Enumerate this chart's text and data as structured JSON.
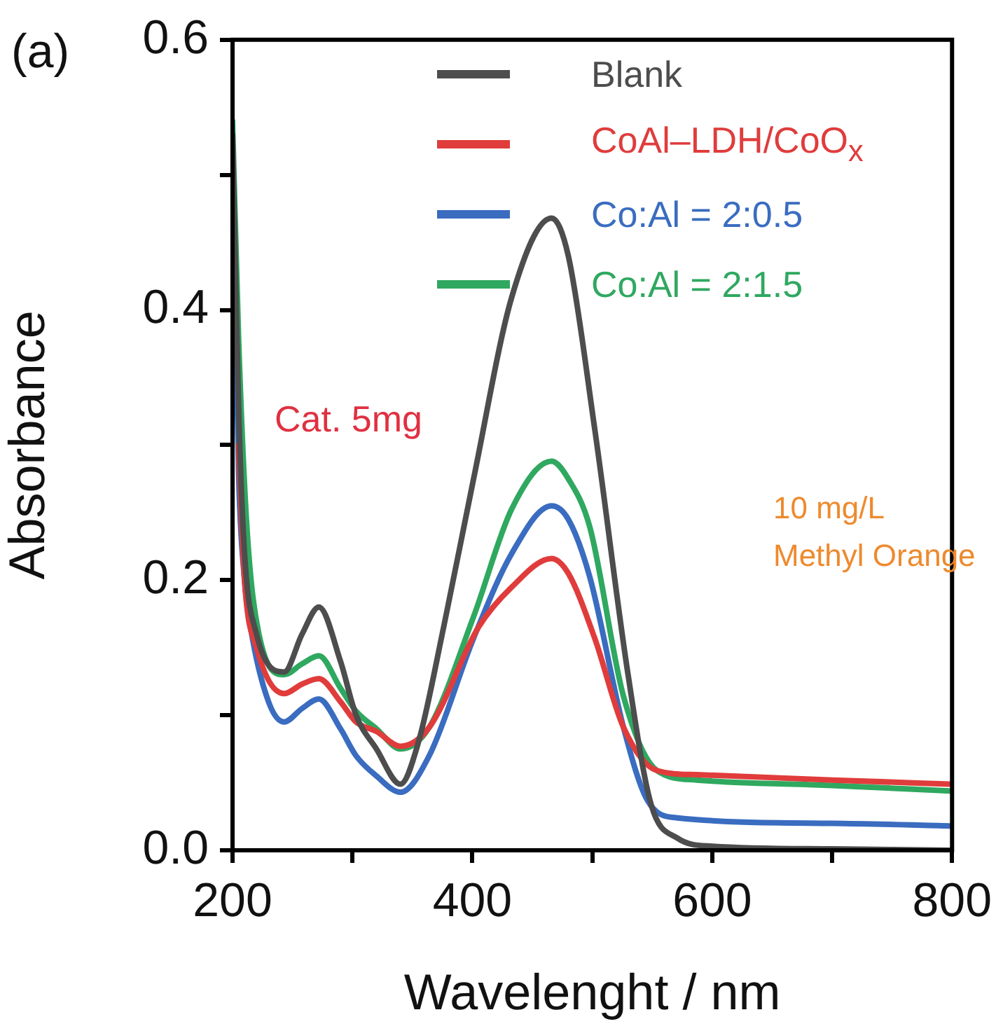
{
  "chart_data": {
    "type": "line",
    "xlabel": "Wavelenght / nm",
    "ylabel": "Absorbance",
    "xlim": [
      200,
      800
    ],
    "ylim": [
      0,
      0.6
    ],
    "xticks": [
      200,
      {
        "value": 300,
        "label": null
      },
      400,
      {
        "value": 500,
        "label": null
      },
      600,
      {
        "value": 700,
        "label": null
      },
      800
    ],
    "yticks": [
      {
        "value": 0,
        "label": "0.0"
      },
      {
        "value": 0.1,
        "label": null
      },
      0.2,
      {
        "value": 0.3,
        "label": null
      },
      0.4,
      {
        "value": 0.5,
        "label": null
      },
      0.6
    ],
    "grid": false,
    "legend": "top right",
    "marker": "none",
    "line_style": "solid",
    "annotations": [
      "(a)",
      "Cat. 5mg",
      "10 mg/L\nMethyl Orange"
    ],
    "series": [
      {
        "name": "Blank",
        "color": "#4d4d4d",
        "x": [
          200,
          205,
          210,
          220,
          243,
          258,
          272,
          290,
          303,
          320,
          340,
          355,
          376,
          401,
          433,
          466,
          480,
          502,
          530,
          549,
          571,
          600,
          700,
          800
        ],
        "values": [
          0.53,
          0.33,
          0.22,
          0.16,
          0.132,
          0.16,
          0.18,
          0.14,
          0.1,
          0.075,
          0.049,
          0.08,
          0.165,
          0.275,
          0.41,
          0.468,
          0.44,
          0.312,
          0.129,
          0.034,
          0.009,
          0.003,
          0.001,
          0
        ]
      },
      {
        "name": "CoAl–LDH/CoO$_{x}$",
        "color": "#e03c3c",
        "x": [
          205,
          210,
          220,
          243,
          258,
          272,
          290,
          303,
          320,
          340,
          364,
          405,
          433,
          466,
          480,
          502,
          526,
          554,
          587,
          700,
          798
        ],
        "values": [
          0.3,
          0.2,
          0.15,
          0.116,
          0.123,
          0.127,
          0.11,
          0.095,
          0.088,
          0.077,
          0.091,
          0.165,
          0.195,
          0.216,
          0.205,
          0.157,
          0.091,
          0.059,
          0.056,
          0.052,
          0.049
        ]
      },
      {
        "name": "Co:Al = 2:0.5",
        "color": "#3a6cc0",
        "x": [
          200,
          205,
          210,
          215,
          230,
          243,
          258,
          272,
          290,
          303,
          320,
          340,
          364,
          401,
          433,
          466,
          480,
          498,
          526,
          546,
          571,
          700,
          798
        ],
        "values": [
          0.52,
          0.28,
          0.2,
          0.165,
          0.11,
          0.095,
          0.105,
          0.112,
          0.09,
          0.07,
          0.055,
          0.043,
          0.07,
          0.157,
          0.22,
          0.255,
          0.245,
          0.202,
          0.091,
          0.037,
          0.024,
          0.02,
          0.018
        ]
      },
      {
        "name": "Co:Al = 2:1.5",
        "color": "#2fa860",
        "x": [
          200,
          205,
          212,
          222,
          243,
          258,
          272,
          290,
          303,
          320,
          340,
          364,
          401,
          433,
          466,
          480,
          498,
          526,
          554,
          587,
          700,
          798
        ],
        "values": [
          0.54,
          0.38,
          0.239,
          0.16,
          0.13,
          0.138,
          0.144,
          0.12,
          0.103,
          0.09,
          0.075,
          0.091,
          0.173,
          0.253,
          0.288,
          0.275,
          0.239,
          0.114,
          0.059,
          0.052,
          0.048,
          0.044
        ]
      }
    ]
  }
}
